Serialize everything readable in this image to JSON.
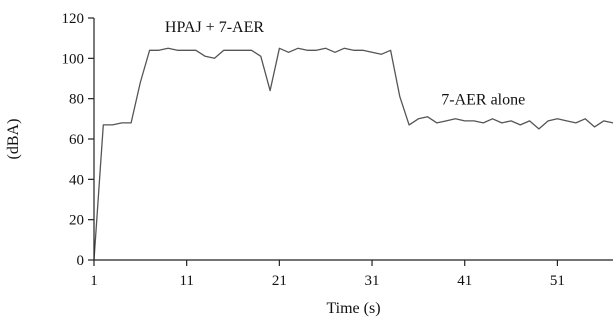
{
  "chart_data": {
    "type": "line",
    "title": "",
    "xlabel": "Time (s)",
    "ylabel": "(dBA)",
    "xlim": [
      1,
      57
    ],
    "ylim": [
      0,
      120
    ],
    "x_ticks": [
      1,
      11,
      21,
      31,
      41,
      51
    ],
    "y_ticks": [
      0,
      20,
      40,
      60,
      80,
      100,
      120
    ],
    "grid": false,
    "series": [
      {
        "color": "#555555",
        "x": [
          1,
          2,
          3,
          4,
          5,
          6,
          7,
          8,
          9,
          10,
          11,
          12,
          13,
          14,
          15,
          16,
          17,
          18,
          19,
          20,
          21,
          22,
          23,
          24,
          25,
          26,
          27,
          28,
          29,
          30,
          31,
          32,
          33,
          34,
          35,
          36,
          37,
          38,
          39,
          40,
          41,
          42,
          43,
          44,
          45,
          46,
          47,
          48,
          49,
          50,
          51,
          52,
          53,
          54,
          55,
          56,
          57
        ],
        "values": [
          0,
          67,
          67,
          68,
          68,
          88,
          104,
          104,
          105,
          104,
          104,
          104,
          101,
          100,
          104,
          104,
          104,
          104,
          101,
          84,
          105,
          103,
          105,
          104,
          104,
          105,
          103,
          105,
          104,
          104,
          103,
          102,
          104,
          81,
          67,
          70,
          71,
          68,
          69,
          70,
          69,
          69,
          68,
          70,
          68,
          69,
          67,
          69,
          65,
          69,
          70,
          69,
          68,
          70,
          66,
          69,
          68
        ]
      }
    ],
    "annotations": [
      {
        "text": "HPAJ + 7-AER",
        "x": 14,
        "y": 113
      },
      {
        "text": "7-AER alone",
        "x": 43,
        "y": 77
      }
    ]
  }
}
